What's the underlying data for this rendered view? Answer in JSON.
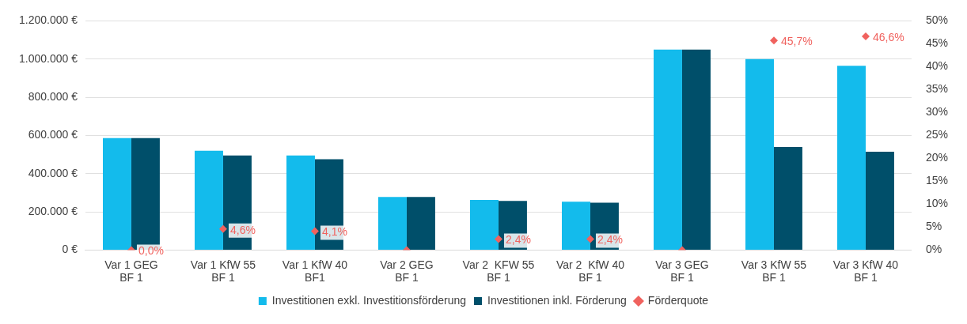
{
  "chart_data": {
    "type": "bar",
    "categories": [
      "Var 1 GEG\nBF 1",
      "Var 1 KfW 55\nBF 1",
      "Var 1 KfW 40\nBF1",
      "Var 2 GEG\nBF 1",
      "Var 2  KFW 55\nBF 1",
      "Var 2  KfW 40\nBF 1",
      "Var 3 GEG\nBF 1",
      "Var 3 KfW 55\nBF 1",
      "Var 3 KfW 40\nBF 1"
    ],
    "series": [
      {
        "name": "Investitionen exkl. Investitionsförderung",
        "color": "#13bbec",
        "values": [
          586000,
          520000,
          495000,
          278000,
          262000,
          253000,
          1050000,
          1000000,
          965000
        ]
      },
      {
        "name": "Investitionen inkl. Förderung",
        "color": "#004f6a",
        "values": [
          586000,
          495000,
          475000,
          278000,
          257000,
          248000,
          1050000,
          540000,
          515000
        ]
      },
      {
        "name": "Förderquote",
        "type": "scatter",
        "axis": "y2",
        "marker": "diamond",
        "color": "#f0625e",
        "values": [
          0.0,
          4.6,
          4.1,
          0,
          2.4,
          2.4,
          0,
          45.7,
          46.6
        ],
        "value_labels": [
          "0,0%",
          "4,6%",
          "4,1%",
          null,
          "2,4%",
          "2,4%",
          null,
          "45,7%",
          "46,6%"
        ]
      }
    ],
    "ylim": [
      0,
      1200000
    ],
    "yticks": [
      {
        "value": 0,
        "label": "0 €"
      },
      {
        "value": 200000,
        "label": "200.000 €"
      },
      {
        "value": 400000,
        "label": "400.000 €"
      },
      {
        "value": 600000,
        "label": "600.000 €"
      },
      {
        "value": 800000,
        "label": "800.000 €"
      },
      {
        "value": 1000000,
        "label": "1.000.000 €"
      },
      {
        "value": 1200000,
        "label": "1.200.000 €"
      }
    ],
    "y2lim": [
      0,
      50
    ],
    "y2ticks": [
      {
        "value": 0,
        "label": "0%"
      },
      {
        "value": 5,
        "label": "5%"
      },
      {
        "value": 10,
        "label": "10%"
      },
      {
        "value": 15,
        "label": "15%"
      },
      {
        "value": 20,
        "label": "20%"
      },
      {
        "value": 25,
        "label": "25%"
      },
      {
        "value": 30,
        "label": "30%"
      },
      {
        "value": 35,
        "label": "35%"
      },
      {
        "value": 40,
        "label": "40%"
      },
      {
        "value": 45,
        "label": "45%"
      },
      {
        "value": 50,
        "label": "50%"
      }
    ],
    "grid": "y",
    "legend": "bottom"
  }
}
